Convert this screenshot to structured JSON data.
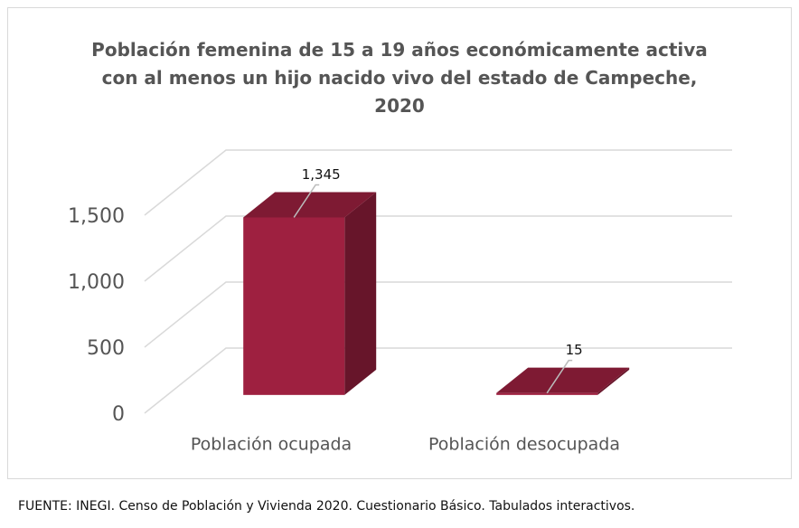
{
  "chart_data": {
    "type": "bar3d",
    "title": "Población femenina de 15 a 19 años económicamente activa con al menos un hijo nacido vivo del estado de Campeche, 2020",
    "categories": [
      "Población ocupada",
      "Población desocupada"
    ],
    "values": [
      1345,
      15
    ],
    "value_labels": [
      "1,345",
      "15"
    ],
    "color": "#9e2040",
    "ylim": [
      0,
      1500
    ],
    "yticks": [
      0,
      500,
      {
        "value": 1000,
        "label": "1,000"
      },
      {
        "value": 1500,
        "label": "1,500"
      }
    ],
    "grid": true,
    "source": "FUENTE: INEGI. Censo de Población y Vivienda 2020. Cuestionario Básico. Tabulados interactivos."
  }
}
